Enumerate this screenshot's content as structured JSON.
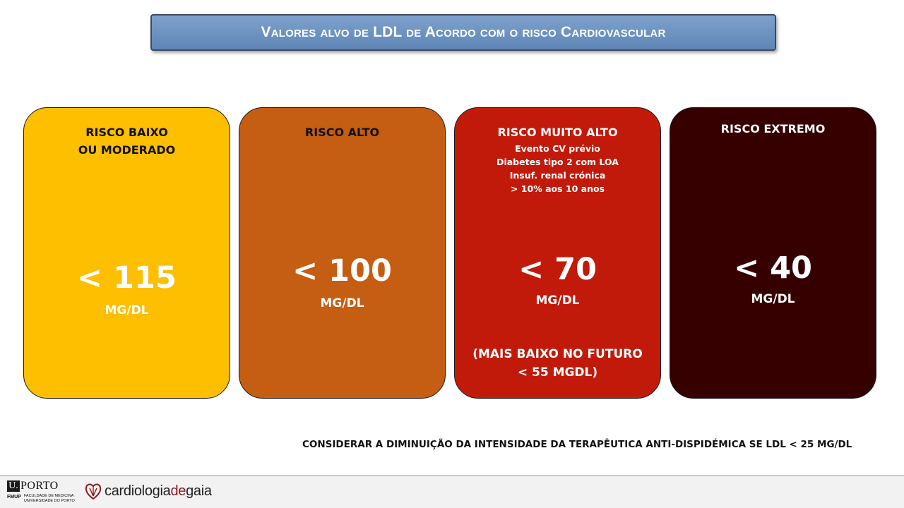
{
  "title": "Valores alvo de LDL de Acordo com o risco Cardiovascular",
  "cards": [
    {
      "heading": "RISCO BAIXO\nOU MODERADO",
      "criteria": [],
      "value": "< 115",
      "unit": "MG/DL",
      "note": "",
      "color": "#fdbf00"
    },
    {
      "heading": "RISCO ALTO",
      "criteria": [],
      "value": "< 100",
      "unit": "MG/DL",
      "note": "",
      "color": "#c55d13"
    },
    {
      "heading": "RISCO MUITO ALTO",
      "criteria": [
        "Evento CV prévio",
        "Diabetes tipo 2 com LOA",
        "Insuf. renal crónica",
        "> 10% aos 10 anos"
      ],
      "value": "< 70",
      "unit": "MG/DL",
      "note": "(MAIS BAIXO NO FUTURO\n< 55 MGDL)",
      "color": "#c21a0a"
    },
    {
      "heading": "RISCO EXTREMO",
      "criteria": [],
      "value": "< 40",
      "unit": "MG/DL",
      "note": "",
      "color": "#360000"
    }
  ],
  "footnote": "CONSIDERAR A DIMINUIÇÃO DA INTENSIDADE DA TERAPÊUTICA ANTI-DISPIDÉMICA SE LDL < 25 MG/DL",
  "footer": {
    "uporto": {
      "box": "U.",
      "word": "PORTO",
      "abbr": "FMUP",
      "line1": "FACULDADE DE MEDICINA",
      "line2": "UNIVERSIDADE DO PORTO"
    },
    "cardiologia": {
      "part1": "cardiologia",
      "part2": "de",
      "part3": "gaia"
    }
  }
}
